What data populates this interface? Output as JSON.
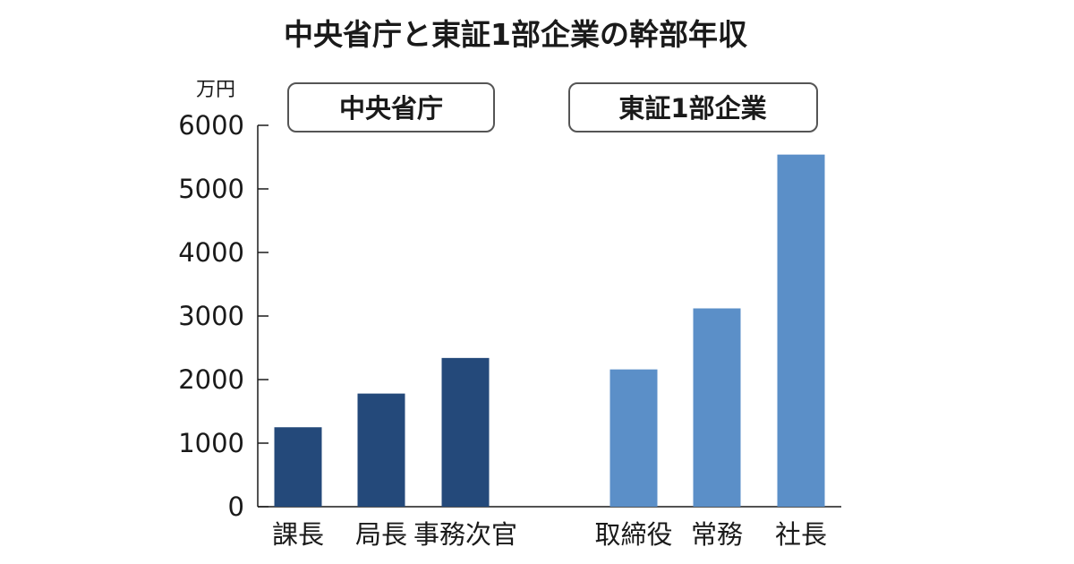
{
  "chart_data": {
    "type": "bar",
    "title": "中央省庁と東証1部企業の幹部年収",
    "unit_label": "万円",
    "ylim": [
      0,
      6000
    ],
    "yticks": [
      0,
      1000,
      2000,
      3000,
      4000,
      5000,
      6000
    ],
    "grid": false,
    "groups": [
      {
        "label": "中央省庁",
        "color": "#24497a",
        "categories": [
          "課長",
          "局長",
          "事務次官"
        ],
        "values": [
          1250,
          1780,
          2340
        ]
      },
      {
        "label": "東証1部企業",
        "color": "#5b8fc8",
        "categories": [
          "取締役",
          "常務",
          "社長"
        ],
        "values": [
          2160,
          3120,
          5540
        ]
      }
    ]
  }
}
